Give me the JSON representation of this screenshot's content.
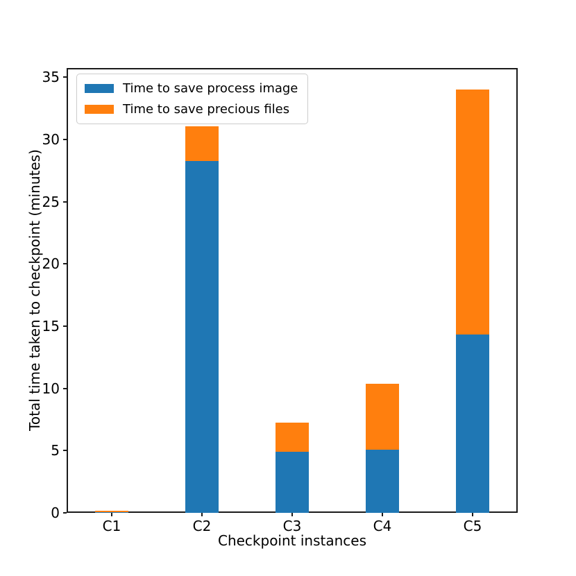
{
  "figure": {
    "xlabel": "Checkpoint instances",
    "ylabel": "Total time taken to checkpoint (minutes)"
  },
  "chart_data": {
    "type": "bar",
    "stacked": true,
    "title": "",
    "xlabel": "Checkpoint instances",
    "ylabel": "Total time taken to checkpoint (minutes)",
    "categories": [
      "C1",
      "C2",
      "C3",
      "C4",
      "C5"
    ],
    "series": [
      {
        "name": "Time to save process image",
        "color": "#1f77b4",
        "values": [
          0.05,
          28.3,
          4.9,
          5.1,
          14.35
        ]
      },
      {
        "name": "Time to save precious files",
        "color": "#ff7f0e",
        "values": [
          0.1,
          2.75,
          2.35,
          5.3,
          19.65
        ]
      }
    ],
    "totals": [
      0.15,
      31.05,
      7.25,
      10.4,
      34.0
    ],
    "yticks": [
      0,
      5,
      10,
      15,
      20,
      25,
      30,
      35
    ],
    "ylim": [
      0,
      35.75
    ],
    "grid": false,
    "legend_position": "upper left",
    "bar_width_ratio": 0.37,
    "spine_color": "#1a1a1a"
  }
}
